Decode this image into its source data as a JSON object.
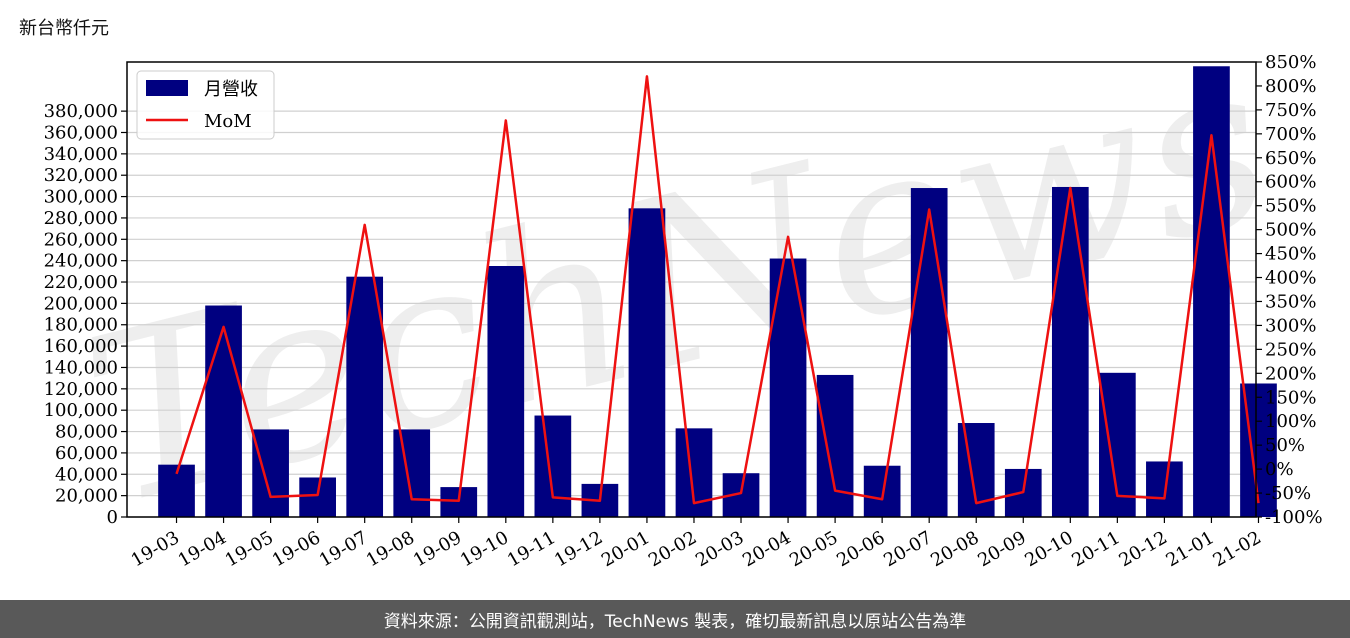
{
  "unit_label": "新台幣仟元",
  "footer_text": "資料來源：公開資訊觀測站，TechNews 製表，確切最新訊息以原站公告為準",
  "watermark_text": "TechNews",
  "colors": {
    "bar": "#000080",
    "line": "#ee1111",
    "grid": "#d0d0d0",
    "footer_bg": "#595959"
  },
  "chart_data": {
    "type": "bar",
    "categories": [
      "19-03",
      "19-04",
      "19-05",
      "19-06",
      "19-07",
      "19-08",
      "19-09",
      "19-10",
      "19-11",
      "19-12",
      "20-01",
      "20-02",
      "20-03",
      "20-04",
      "20-05",
      "20-06",
      "20-07",
      "20-08",
      "20-09",
      "20-10",
      "20-11",
      "20-12",
      "21-01",
      "21-02"
    ],
    "series": [
      {
        "name": "月營收",
        "type": "bar",
        "axis": "left",
        "values": [
          49000,
          198000,
          82000,
          37000,
          225000,
          82000,
          28000,
          235000,
          95000,
          31000,
          289000,
          83000,
          41000,
          242000,
          133000,
          48000,
          308000,
          88000,
          45000,
          309000,
          135000,
          52000,
          422000,
          125000
        ]
      },
      {
        "name": "MoM",
        "type": "line",
        "axis": "right",
        "values": [
          -10,
          297,
          -58,
          -54,
          510,
          -63,
          -66,
          728,
          -59,
          -66,
          820,
          -71,
          -50,
          485,
          -45,
          -63,
          542,
          -71,
          -48,
          587,
          -56,
          -61,
          697,
          -71
        ]
      }
    ],
    "y_left": {
      "ylim": [
        0,
        426000
      ],
      "ticks": [
        0,
        20000,
        40000,
        60000,
        80000,
        100000,
        120000,
        140000,
        160000,
        180000,
        200000,
        220000,
        240000,
        260000,
        280000,
        300000,
        320000,
        340000,
        360000,
        380000
      ],
      "tick_labels": [
        "0",
        "20,000",
        "40,000",
        "60,000",
        "80,000",
        "100,000",
        "120,000",
        "140,000",
        "160,000",
        "180,000",
        "200,000",
        "220,000",
        "240,000",
        "260,000",
        "280,000",
        "300,000",
        "320,000",
        "340,000",
        "360,000",
        "380,000"
      ]
    },
    "y_right": {
      "ylim": [
        -100,
        850
      ],
      "ticks": [
        -100,
        -50,
        0,
        50,
        100,
        150,
        200,
        250,
        300,
        350,
        400,
        450,
        500,
        550,
        600,
        650,
        700,
        750,
        800,
        850
      ],
      "tick_labels": [
        "-100%",
        "-50%",
        "0%",
        "50%",
        "100%",
        "150%",
        "200%",
        "250%",
        "300%",
        "350%",
        "400%",
        "450%",
        "500%",
        "550%",
        "600%",
        "650%",
        "700%",
        "750%",
        "800%",
        "850%"
      ]
    },
    "grid": "horizontal",
    "legend_position": "top-left"
  }
}
